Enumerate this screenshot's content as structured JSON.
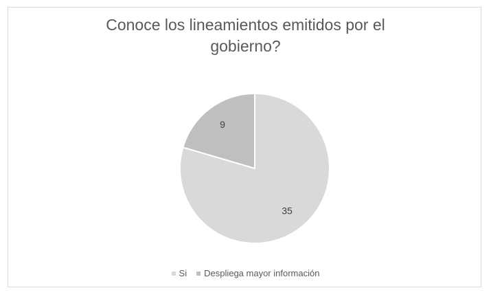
{
  "chart_data": {
    "type": "pie",
    "title": "Conoce los lineamientos emitidos por el gobierno?",
    "title_lines": [
      "Conoce los lineamientos emitidos por el",
      "gobierno?"
    ],
    "categories": [
      "Si",
      "Despliega mayor información"
    ],
    "values": [
      35,
      9
    ],
    "colors": [
      "#d9d9d9",
      "#bfbfbf"
    ],
    "data_labels": [
      "35",
      "9"
    ],
    "legend_position": "bottom",
    "start_angle_deg": 0,
    "direction": "clockwise"
  }
}
